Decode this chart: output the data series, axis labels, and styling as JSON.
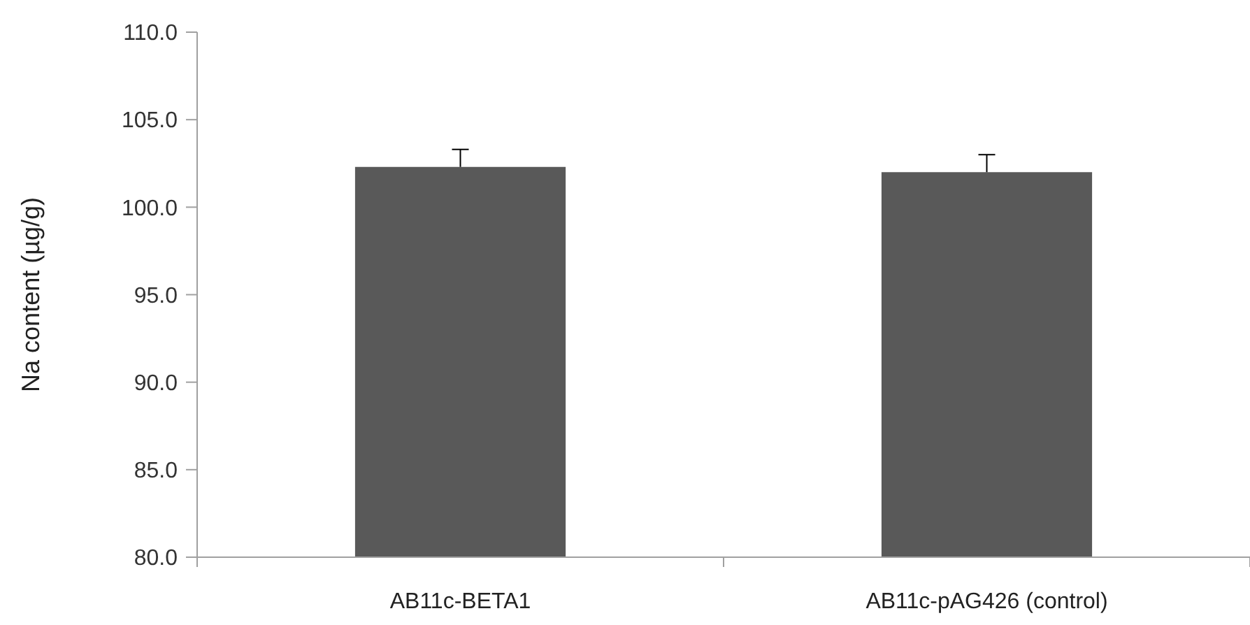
{
  "chart_data": {
    "type": "bar",
    "ylabel": "Na content (µg/g)",
    "categories": [
      "AB11c-BETA1",
      "AB11c-pAG426 (control)"
    ],
    "values": [
      102.3,
      102.0
    ],
    "errors": [
      [
        102.3,
        103.3
      ],
      [
        102.0,
        103.0
      ]
    ],
    "color": "#595959",
    "ylim": [
      80,
      110
    ],
    "yticks": [
      {
        "value": 80,
        "label": "80.0"
      },
      {
        "value": 85,
        "label": "85.0"
      },
      {
        "value": 90,
        "label": "90.0"
      },
      {
        "value": 95,
        "label": "95.0"
      },
      {
        "value": 100,
        "label": "100.0"
      },
      {
        "value": 105,
        "label": "105.0"
      },
      {
        "value": 110,
        "label": "110.0"
      }
    ]
  }
}
